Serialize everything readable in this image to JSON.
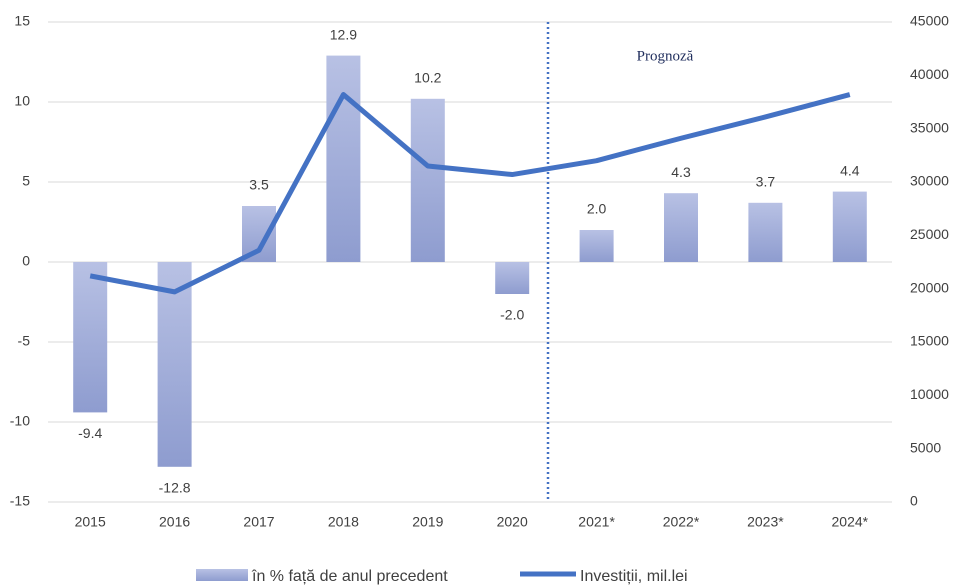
{
  "chart_data": {
    "type": "bar_line",
    "categories": [
      "2015",
      "2016",
      "2017",
      "2018",
      "2019",
      "2020",
      "2021*",
      "2022*",
      "2023*",
      "2024*"
    ],
    "series": [
      {
        "name": "în % față de anul precedent",
        "type": "bar",
        "color": "#a3afdc",
        "values": [
          -9.4,
          -12.8,
          3.5,
          12.9,
          10.2,
          -2.0,
          2.0,
          4.3,
          3.7,
          4.4
        ],
        "value_labels": [
          "-9.4",
          "-12.8",
          "3.5",
          "12.9",
          "10.2",
          "-2.0",
          "2.0",
          "4.3",
          "3.7",
          "4.4"
        ]
      },
      {
        "name": "Investiții, mil.lei",
        "type": "line",
        "axis": "y2",
        "color": "#4472c4",
        "values": [
          21200,
          19700,
          23600,
          38200,
          31500,
          30700,
          32000,
          34100,
          36100,
          38200
        ]
      }
    ],
    "ylim": [
      -15,
      15
    ],
    "yticks": [
      -15,
      -10,
      -5,
      0,
      5,
      10,
      15
    ],
    "y2lim": [
      0,
      45000
    ],
    "y2ticks": [
      0,
      5000,
      10000,
      15000,
      20000,
      25000,
      30000,
      35000,
      40000,
      45000
    ],
    "annotation": "Prognoză",
    "grid": true,
    "legend": "bottom"
  }
}
